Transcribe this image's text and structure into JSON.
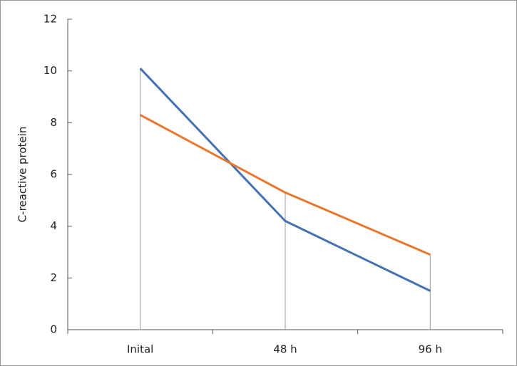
{
  "chart_data": {
    "type": "line",
    "y_label": "C-reactive protein",
    "categories": [
      "Inital",
      "48 h",
      "96 h"
    ],
    "series": [
      {
        "color": "#4472b0",
        "values": [
          10.1,
          4.2,
          1.5
        ]
      },
      {
        "color": "#e8772e",
        "values": [
          8.3,
          5.3,
          2.9
        ]
      }
    ],
    "ylim": [
      0,
      12
    ],
    "yticks": [
      0,
      2,
      4,
      6,
      8,
      10,
      12
    ],
    "drop_lines": true
  }
}
